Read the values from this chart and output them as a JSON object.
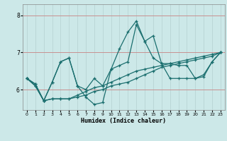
{
  "xlabel": "Humidex (Indice chaleur)",
  "bg_color": "#cce8e8",
  "line_color": "#1a6e6e",
  "grid_color_v": "#b8d4d4",
  "grid_color_h": "#c89090",
  "xlim": [
    -0.5,
    23.5
  ],
  "ylim": [
    5.45,
    8.3
  ],
  "yticks": [
    6,
    7,
    8
  ],
  "xticks": [
    0,
    1,
    2,
    3,
    4,
    5,
    6,
    7,
    8,
    9,
    10,
    11,
    12,
    13,
    14,
    15,
    16,
    17,
    18,
    19,
    20,
    21,
    22,
    23
  ],
  "series": [
    [
      6.3,
      6.15,
      5.7,
      6.2,
      6.75,
      6.85,
      6.1,
      6.0,
      6.3,
      6.1,
      6.55,
      6.65,
      6.75,
      7.75,
      7.3,
      6.85,
      6.7,
      6.3,
      6.3,
      6.3,
      6.3,
      6.4,
      6.75,
      7.0
    ],
    [
      6.3,
      6.1,
      5.7,
      5.75,
      5.75,
      5.75,
      5.8,
      5.85,
      5.95,
      6.0,
      6.1,
      6.15,
      6.2,
      6.3,
      6.4,
      6.5,
      6.6,
      6.65,
      6.7,
      6.75,
      6.8,
      6.85,
      6.9,
      7.0
    ],
    [
      6.3,
      6.1,
      5.7,
      5.75,
      5.75,
      5.75,
      5.85,
      5.95,
      6.05,
      6.1,
      6.2,
      6.3,
      6.4,
      6.5,
      6.55,
      6.6,
      6.65,
      6.7,
      6.75,
      6.8,
      6.85,
      6.9,
      6.95,
      7.0
    ],
    [
      6.3,
      6.15,
      5.7,
      6.2,
      6.75,
      6.85,
      6.1,
      5.8,
      5.6,
      5.65,
      6.55,
      7.1,
      7.55,
      7.85,
      7.3,
      7.45,
      6.7,
      6.7,
      6.65,
      6.65,
      6.3,
      6.35,
      6.75,
      7.0
    ]
  ]
}
